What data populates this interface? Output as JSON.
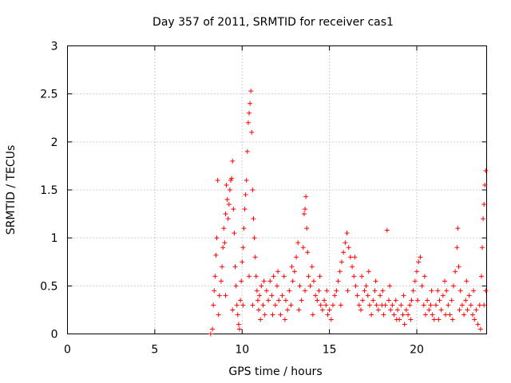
{
  "chart_data": {
    "type": "scatter",
    "title": "Day 357 of 2011, SRMTID for receiver cas1",
    "xlabel": "GPS time / hours",
    "ylabel": "SRMTID / TECUs",
    "xlim": [
      0,
      24
    ],
    "ylim": [
      0,
      3
    ],
    "xticks": [
      0,
      5,
      10,
      15,
      20
    ],
    "yticks": [
      0,
      0.5,
      1,
      1.5,
      2,
      2.5,
      3
    ],
    "xtick_labels": [
      "0",
      "5",
      "10",
      "15",
      "20"
    ],
    "ytick_labels": [
      "0",
      "0.5",
      "1",
      "1.5",
      "2",
      "2.5",
      "3"
    ],
    "grid": true,
    "marker": "+",
    "color": "#ff0000",
    "series": [
      {
        "name": "cas1",
        "points": [
          [
            8.2,
            0.0
          ],
          [
            8.3,
            0.05
          ],
          [
            8.35,
            0.3
          ],
          [
            8.4,
            0.45
          ],
          [
            8.45,
            0.6
          ],
          [
            8.5,
            0.82
          ],
          [
            8.55,
            1.0
          ],
          [
            8.6,
            1.6
          ],
          [
            8.65,
            0.2
          ],
          [
            8.7,
            0.4
          ],
          [
            8.8,
            0.55
          ],
          [
            8.85,
            0.7
          ],
          [
            8.9,
            0.9
          ],
          [
            8.95,
            1.1
          ],
          [
            9.0,
            0.95
          ],
          [
            9.05,
            1.25
          ],
          [
            9.1,
            1.55
          ],
          [
            9.15,
            1.4
          ],
          [
            9.2,
            1.2
          ],
          [
            9.25,
            1.35
          ],
          [
            9.3,
            1.5
          ],
          [
            9.35,
            1.6
          ],
          [
            9.4,
            1.62
          ],
          [
            9.45,
            1.8
          ],
          [
            9.5,
            1.3
          ],
          [
            9.55,
            1.05
          ],
          [
            9.6,
            0.7
          ],
          [
            9.65,
            0.5
          ],
          [
            9.7,
            0.3
          ],
          [
            9.75,
            0.2
          ],
          [
            9.8,
            0.1
          ],
          [
            9.85,
            0.05
          ],
          [
            9.9,
            0.35
          ],
          [
            9.95,
            0.55
          ],
          [
            10.0,
            0.75
          ],
          [
            10.05,
            0.9
          ],
          [
            10.1,
            1.1
          ],
          [
            10.15,
            1.3
          ],
          [
            10.2,
            1.45
          ],
          [
            10.25,
            1.6
          ],
          [
            10.3,
            1.9
          ],
          [
            10.35,
            2.2
          ],
          [
            10.4,
            2.3
          ],
          [
            10.45,
            2.4
          ],
          [
            10.5,
            2.53
          ],
          [
            10.55,
            2.1
          ],
          [
            10.6,
            1.5
          ],
          [
            10.65,
            1.2
          ],
          [
            10.7,
            1.0
          ],
          [
            10.75,
            0.8
          ],
          [
            10.8,
            0.6
          ],
          [
            10.85,
            0.45
          ],
          [
            10.9,
            0.35
          ],
          [
            10.95,
            0.25
          ],
          [
            11.0,
            0.4
          ],
          [
            11.1,
            0.5
          ],
          [
            11.2,
            0.3
          ],
          [
            11.3,
            0.2
          ],
          [
            11.4,
            0.45
          ],
          [
            11.5,
            0.35
          ],
          [
            11.6,
            0.55
          ],
          [
            11.7,
            0.4
          ],
          [
            11.8,
            0.6
          ],
          [
            11.9,
            0.3
          ],
          [
            12.0,
            0.5
          ],
          [
            12.1,
            0.35
          ],
          [
            12.2,
            0.2
          ],
          [
            12.3,
            0.4
          ],
          [
            12.4,
            0.6
          ],
          [
            12.5,
            0.35
          ],
          [
            12.6,
            0.25
          ],
          [
            12.7,
            0.45
          ],
          [
            12.8,
            0.3
          ],
          [
            12.9,
            0.55
          ],
          [
            13.0,
            0.65
          ],
          [
            13.1,
            0.8
          ],
          [
            13.2,
            0.95
          ],
          [
            13.3,
            0.5
          ],
          [
            13.4,
            0.35
          ],
          [
            13.5,
            0.9
          ],
          [
            13.55,
            1.25
          ],
          [
            13.6,
            1.3
          ],
          [
            13.65,
            1.43
          ],
          [
            13.7,
            1.1
          ],
          [
            13.75,
            0.85
          ],
          [
            13.8,
            0.6
          ],
          [
            13.9,
            0.5
          ],
          [
            14.0,
            0.7
          ],
          [
            14.1,
            0.55
          ],
          [
            14.2,
            0.4
          ],
          [
            14.3,
            0.35
          ],
          [
            14.4,
            0.45
          ],
          [
            14.5,
            0.3
          ],
          [
            14.6,
            0.25
          ],
          [
            14.7,
            0.35
          ],
          [
            14.8,
            0.3
          ],
          [
            14.9,
            0.2
          ],
          [
            15.0,
            0.25
          ],
          [
            15.1,
            0.15
          ],
          [
            15.2,
            0.3
          ],
          [
            15.4,
            0.45
          ],
          [
            15.5,
            0.55
          ],
          [
            15.6,
            0.65
          ],
          [
            15.7,
            0.75
          ],
          [
            15.8,
            0.85
          ],
          [
            15.9,
            0.95
          ],
          [
            16.0,
            1.05
          ],
          [
            16.1,
            0.9
          ],
          [
            16.2,
            0.8
          ],
          [
            16.3,
            0.7
          ],
          [
            16.4,
            0.6
          ],
          [
            16.5,
            0.5
          ],
          [
            16.6,
            0.4
          ],
          [
            16.7,
            0.3
          ],
          [
            16.8,
            0.25
          ],
          [
            16.9,
            0.35
          ],
          [
            17.0,
            0.45
          ],
          [
            17.1,
            0.5
          ],
          [
            17.2,
            0.4
          ],
          [
            17.3,
            0.3
          ],
          [
            17.4,
            0.2
          ],
          [
            17.5,
            0.35
          ],
          [
            17.6,
            0.45
          ],
          [
            17.7,
            0.3
          ],
          [
            17.8,
            0.25
          ],
          [
            17.9,
            0.4
          ],
          [
            18.0,
            0.3
          ],
          [
            18.1,
            0.2
          ],
          [
            18.2,
            0.3
          ],
          [
            18.3,
            1.08
          ],
          [
            18.4,
            0.35
          ],
          [
            18.5,
            0.25
          ],
          [
            18.6,
            0.3
          ],
          [
            18.7,
            0.2
          ],
          [
            18.8,
            0.35
          ],
          [
            18.9,
            0.25
          ],
          [
            19.0,
            0.15
          ],
          [
            19.1,
            0.3
          ],
          [
            19.2,
            0.2
          ],
          [
            19.3,
            0.1
          ],
          [
            19.4,
            0.25
          ],
          [
            19.5,
            0.2
          ],
          [
            19.6,
            0.3
          ],
          [
            19.7,
            0.35
          ],
          [
            19.8,
            0.45
          ],
          [
            19.9,
            0.55
          ],
          [
            20.0,
            0.65
          ],
          [
            20.1,
            0.75
          ],
          [
            20.2,
            0.8
          ],
          [
            20.3,
            0.5
          ],
          [
            20.4,
            0.3
          ],
          [
            20.5,
            0.2
          ],
          [
            20.6,
            0.35
          ],
          [
            20.7,
            0.25
          ],
          [
            20.8,
            0.3
          ],
          [
            20.9,
            0.2
          ],
          [
            21.0,
            0.15
          ],
          [
            21.1,
            0.3
          ],
          [
            21.2,
            0.45
          ],
          [
            21.3,
            0.35
          ],
          [
            21.4,
            0.25
          ],
          [
            21.5,
            0.4
          ],
          [
            21.6,
            0.55
          ],
          [
            21.7,
            0.45
          ],
          [
            21.8,
            0.3
          ],
          [
            21.9,
            0.2
          ],
          [
            22.0,
            0.35
          ],
          [
            22.1,
            0.5
          ],
          [
            22.2,
            0.65
          ],
          [
            22.3,
            0.9
          ],
          [
            22.35,
            1.1
          ],
          [
            22.4,
            0.7
          ],
          [
            22.5,
            0.45
          ],
          [
            22.6,
            0.3
          ],
          [
            22.7,
            0.2
          ],
          [
            22.8,
            0.35
          ],
          [
            22.9,
            0.25
          ],
          [
            23.0,
            0.4
          ],
          [
            23.1,
            0.3
          ],
          [
            23.2,
            0.2
          ],
          [
            23.3,
            0.15
          ],
          [
            23.4,
            0.25
          ],
          [
            23.5,
            0.1
          ],
          [
            23.6,
            0.3
          ],
          [
            23.7,
            0.6
          ],
          [
            23.75,
            0.9
          ],
          [
            23.8,
            1.2
          ],
          [
            23.85,
            1.35
          ],
          [
            23.9,
            1.55
          ],
          [
            23.95,
            1.7
          ],
          [
            9.05,
            0.4
          ],
          [
            9.45,
            0.25
          ],
          [
            10.05,
            0.3
          ],
          [
            10.4,
            0.6
          ],
          [
            10.6,
            0.3
          ],
          [
            11.05,
            0.15
          ],
          [
            11.25,
            0.55
          ],
          [
            11.75,
            0.2
          ],
          [
            12.05,
            0.65
          ],
          [
            12.45,
            0.15
          ],
          [
            12.85,
            0.7
          ],
          [
            13.25,
            0.25
          ],
          [
            13.6,
            0.45
          ],
          [
            14.05,
            0.2
          ],
          [
            14.45,
            0.6
          ],
          [
            14.85,
            0.45
          ],
          [
            15.3,
            0.4
          ],
          [
            15.65,
            0.3
          ],
          [
            16.05,
            0.45
          ],
          [
            16.45,
            0.8
          ],
          [
            16.85,
            0.6
          ],
          [
            17.25,
            0.65
          ],
          [
            17.65,
            0.55
          ],
          [
            18.05,
            0.45
          ],
          [
            18.45,
            0.5
          ],
          [
            18.85,
            0.15
          ],
          [
            19.25,
            0.4
          ],
          [
            19.65,
            0.15
          ],
          [
            20.05,
            0.35
          ],
          [
            20.45,
            0.6
          ],
          [
            20.85,
            0.45
          ],
          [
            21.25,
            0.15
          ],
          [
            21.65,
            0.2
          ],
          [
            22.05,
            0.15
          ],
          [
            22.45,
            0.25
          ],
          [
            22.85,
            0.55
          ],
          [
            23.25,
            0.45
          ],
          [
            23.65,
            0.05
          ],
          [
            23.85,
            0.3
          ],
          [
            23.95,
            0.45
          ]
        ]
      }
    ]
  }
}
